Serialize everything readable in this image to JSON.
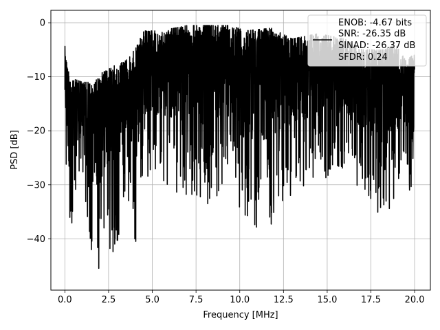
{
  "chart_data": {
    "type": "line",
    "title": "",
    "xlabel": "Frequency [MHz]",
    "ylabel": "PSD [dB]",
    "xlim": [
      -0.8,
      20.9
    ],
    "ylim": [
      -49.5,
      2.3
    ],
    "x_ticks": [
      0.0,
      2.5,
      5.0,
      7.5,
      10.0,
      12.5,
      15.0,
      17.5,
      20.0
    ],
    "x_tick_labels": [
      "0.0",
      "2.5",
      "5.0",
      "7.5",
      "10.0",
      "12.5",
      "15.0",
      "17.5",
      "20.0"
    ],
    "y_ticks": [
      0,
      -10,
      -20,
      -30,
      -40
    ],
    "y_tick_labels": [
      "0",
      "−10",
      "−20",
      "−30",
      "−40"
    ],
    "grid": true,
    "legend_placement": "top-right",
    "series": [
      {
        "color": "#000000",
        "x_range": [
          0,
          20
        ],
        "envelope": [
          {
            "x": 0.0,
            "hi": -4.2,
            "lo": -26
          },
          {
            "x": 0.3,
            "hi": -11,
            "lo": -43.5
          },
          {
            "x": 0.6,
            "hi": -10.5,
            "lo": -32
          },
          {
            "x": 1.0,
            "hi": -11,
            "lo": -29
          },
          {
            "x": 1.4,
            "hi": -11,
            "lo": -40.5
          },
          {
            "x": 1.6,
            "hi": -12,
            "lo": -44
          },
          {
            "x": 1.95,
            "hi": -9.5,
            "lo": -47.5
          },
          {
            "x": 2.3,
            "hi": -9,
            "lo": -40.5
          },
          {
            "x": 2.8,
            "hi": -8,
            "lo": -46
          },
          {
            "x": 3.5,
            "hi": -7,
            "lo": -30
          },
          {
            "x": 4.1,
            "hi": -4.5,
            "lo": -43.5
          },
          {
            "x": 4.4,
            "hi": -1.5,
            "lo": -29
          },
          {
            "x": 5.5,
            "hi": -1.5,
            "lo": -29
          },
          {
            "x": 7.0,
            "hi": -0.5,
            "lo": -33
          },
          {
            "x": 8.0,
            "hi": -0.5,
            "lo": -34
          },
          {
            "x": 9.5,
            "hi": -0.5,
            "lo": -30
          },
          {
            "x": 10.3,
            "hi": -1.5,
            "lo": -39.5
          },
          {
            "x": 11.8,
            "hi": -1,
            "lo": -37.5
          },
          {
            "x": 13.0,
            "hi": -3,
            "lo": -32
          },
          {
            "x": 14.5,
            "hi": -2,
            "lo": -29
          },
          {
            "x": 16.0,
            "hi": -3,
            "lo": -28
          },
          {
            "x": 17.0,
            "hi": -5,
            "lo": -31
          },
          {
            "x": 18.3,
            "hi": -5,
            "lo": -37
          },
          {
            "x": 18.9,
            "hi": -4,
            "lo": -32
          },
          {
            "x": 19.5,
            "hi": -7,
            "lo": -29
          },
          {
            "x": 19.9,
            "hi": -6,
            "lo": -35.5
          },
          {
            "x": 20.0,
            "hi": -6,
            "lo": -26
          }
        ]
      }
    ],
    "legend_lines": [
      "ENOB: -4.67 bits",
      "SNR: -26.35 dB",
      "SINAD: -26.37 dB",
      "SFDR: 0.24"
    ]
  }
}
